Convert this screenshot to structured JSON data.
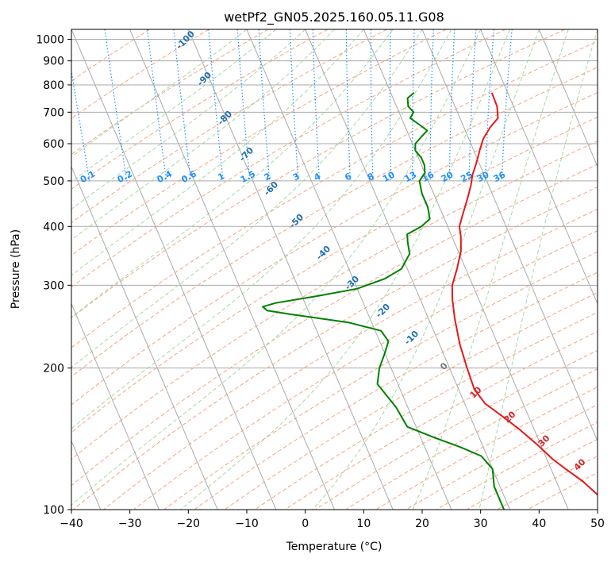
{
  "chart_data": {
    "type": "line",
    "title": "wetPf2_GN05.2025.160.05.11.G08",
    "xlabel": "Temperature (°C)",
    "ylabel": "Pressure (hPa)",
    "xlim": [
      -40,
      50
    ],
    "ylim": [
      1050,
      100
    ],
    "y_scale": "log",
    "grid": true,
    "x_ticks": [
      "−40",
      "−30",
      "−20",
      "−10",
      "0",
      "10",
      "20",
      "30",
      "40",
      "50"
    ],
    "y_ticks": [
      {
        "p": 100,
        "label": "100"
      },
      {
        "p": 200,
        "label": "200"
      },
      {
        "p": 300,
        "label": "300"
      },
      {
        "p": 400,
        "label": "400"
      },
      {
        "p": 500,
        "label": "500"
      },
      {
        "p": 600,
        "label": "600"
      },
      {
        "p": 700,
        "label": "700"
      },
      {
        "p": 800,
        "label": "800"
      },
      {
        "p": 900,
        "label": "900"
      },
      {
        "p": 1000,
        "label": "1000"
      }
    ],
    "series": [
      {
        "color": "#e41a1c",
        "points": [
          [
            27.3,
            770
          ],
          [
            27.2,
            720
          ],
          [
            26.5,
            680
          ],
          [
            24.5,
            650
          ],
          [
            22.5,
            615
          ],
          [
            21,
            580
          ],
          [
            19.5,
            545
          ],
          [
            18,
            515
          ],
          [
            17,
            490
          ],
          [
            15.5,
            460
          ],
          [
            13.5,
            425
          ],
          [
            12,
            400
          ],
          [
            11.5,
            380
          ],
          [
            10.5,
            355
          ],
          [
            8.5,
            325
          ],
          [
            6.5,
            300
          ],
          [
            5.5,
            280
          ],
          [
            4.5,
            255
          ],
          [
            3.5,
            225
          ],
          [
            3,
            200
          ],
          [
            2.7,
            180
          ],
          [
            3.5,
            168
          ],
          [
            5.5,
            158
          ],
          [
            7.5,
            148
          ],
          [
            9.5,
            137
          ],
          [
            11,
            128
          ],
          [
            12.5,
            122
          ],
          [
            14.5,
            115
          ],
          [
            16,
            108
          ],
          [
            17,
            100
          ]
        ]
      },
      {
        "color": "#008000",
        "points": [
          [
            14,
            770
          ],
          [
            12.5,
            750
          ],
          [
            12,
            720
          ],
          [
            12.5,
            700
          ],
          [
            11.5,
            680
          ],
          [
            12.5,
            660
          ],
          [
            13.5,
            640
          ],
          [
            12,
            620
          ],
          [
            10.5,
            600
          ],
          [
            10,
            580
          ],
          [
            10.5,
            560
          ],
          [
            10.5,
            540
          ],
          [
            10,
            520
          ],
          [
            8.5,
            500
          ],
          [
            8,
            470
          ],
          [
            8,
            440
          ],
          [
            7.5,
            415
          ],
          [
            5.5,
            400
          ],
          [
            2.5,
            385
          ],
          [
            2,
            370
          ],
          [
            1.5,
            350
          ],
          [
            -1,
            325
          ],
          [
            -4.5,
            310
          ],
          [
            -10,
            295
          ],
          [
            -17,
            285
          ],
          [
            -25,
            275
          ],
          [
            -27.5,
            270
          ],
          [
            -27,
            265
          ],
          [
            -23,
            260
          ],
          [
            -14,
            250
          ],
          [
            -9,
            240
          ],
          [
            -8.5,
            228
          ],
          [
            -10,
            215
          ],
          [
            -12,
            200
          ],
          [
            -13.5,
            185
          ],
          [
            -12,
            165
          ],
          [
            -11.5,
            150
          ],
          [
            -7.5,
            142
          ],
          [
            -4,
            136
          ],
          [
            -1,
            130
          ],
          [
            0,
            122
          ],
          [
            -1,
            112
          ],
          [
            -1,
            100
          ]
        ]
      }
    ],
    "isotherms": [
      -100,
      -90,
      -80,
      -70,
      -60,
      -50,
      -40,
      -30,
      -20,
      -10,
      0,
      10,
      20,
      30,
      40
    ],
    "isotherm_labels": [
      "-100",
      "-90",
      "-80",
      "-70",
      "-60",
      "-50",
      "-40",
      "-30",
      "-20",
      "-10",
      "0",
      "10",
      "20",
      "30",
      "40"
    ],
    "mixing_ratios": [
      0.1,
      0.2,
      0.4,
      0.6,
      1,
      1.5,
      2,
      3,
      4,
      6,
      8,
      10,
      13,
      16,
      20,
      25,
      30,
      36
    ],
    "mixing_ratio_labels": [
      "0.1",
      "0.2",
      "0.4",
      "0.6",
      "1",
      "1.5",
      "2",
      "3",
      "4",
      "6",
      "8",
      "10",
      "13",
      "16",
      "20",
      "25",
      "30",
      "36"
    ],
    "colors": {
      "temperature": "#e41a1c",
      "dewpoint": "#008000",
      "isotherm": "#aaaaaa",
      "dry_adiabat": "#f4a582",
      "moist_adiabat": "#a6d8a6",
      "mixing_ratio": "#1e90ff",
      "isotherm_label_cold": "#1f6fb0",
      "isotherm_label_warm": "#d62728",
      "isotherm_label_zero": "#777777"
    }
  }
}
